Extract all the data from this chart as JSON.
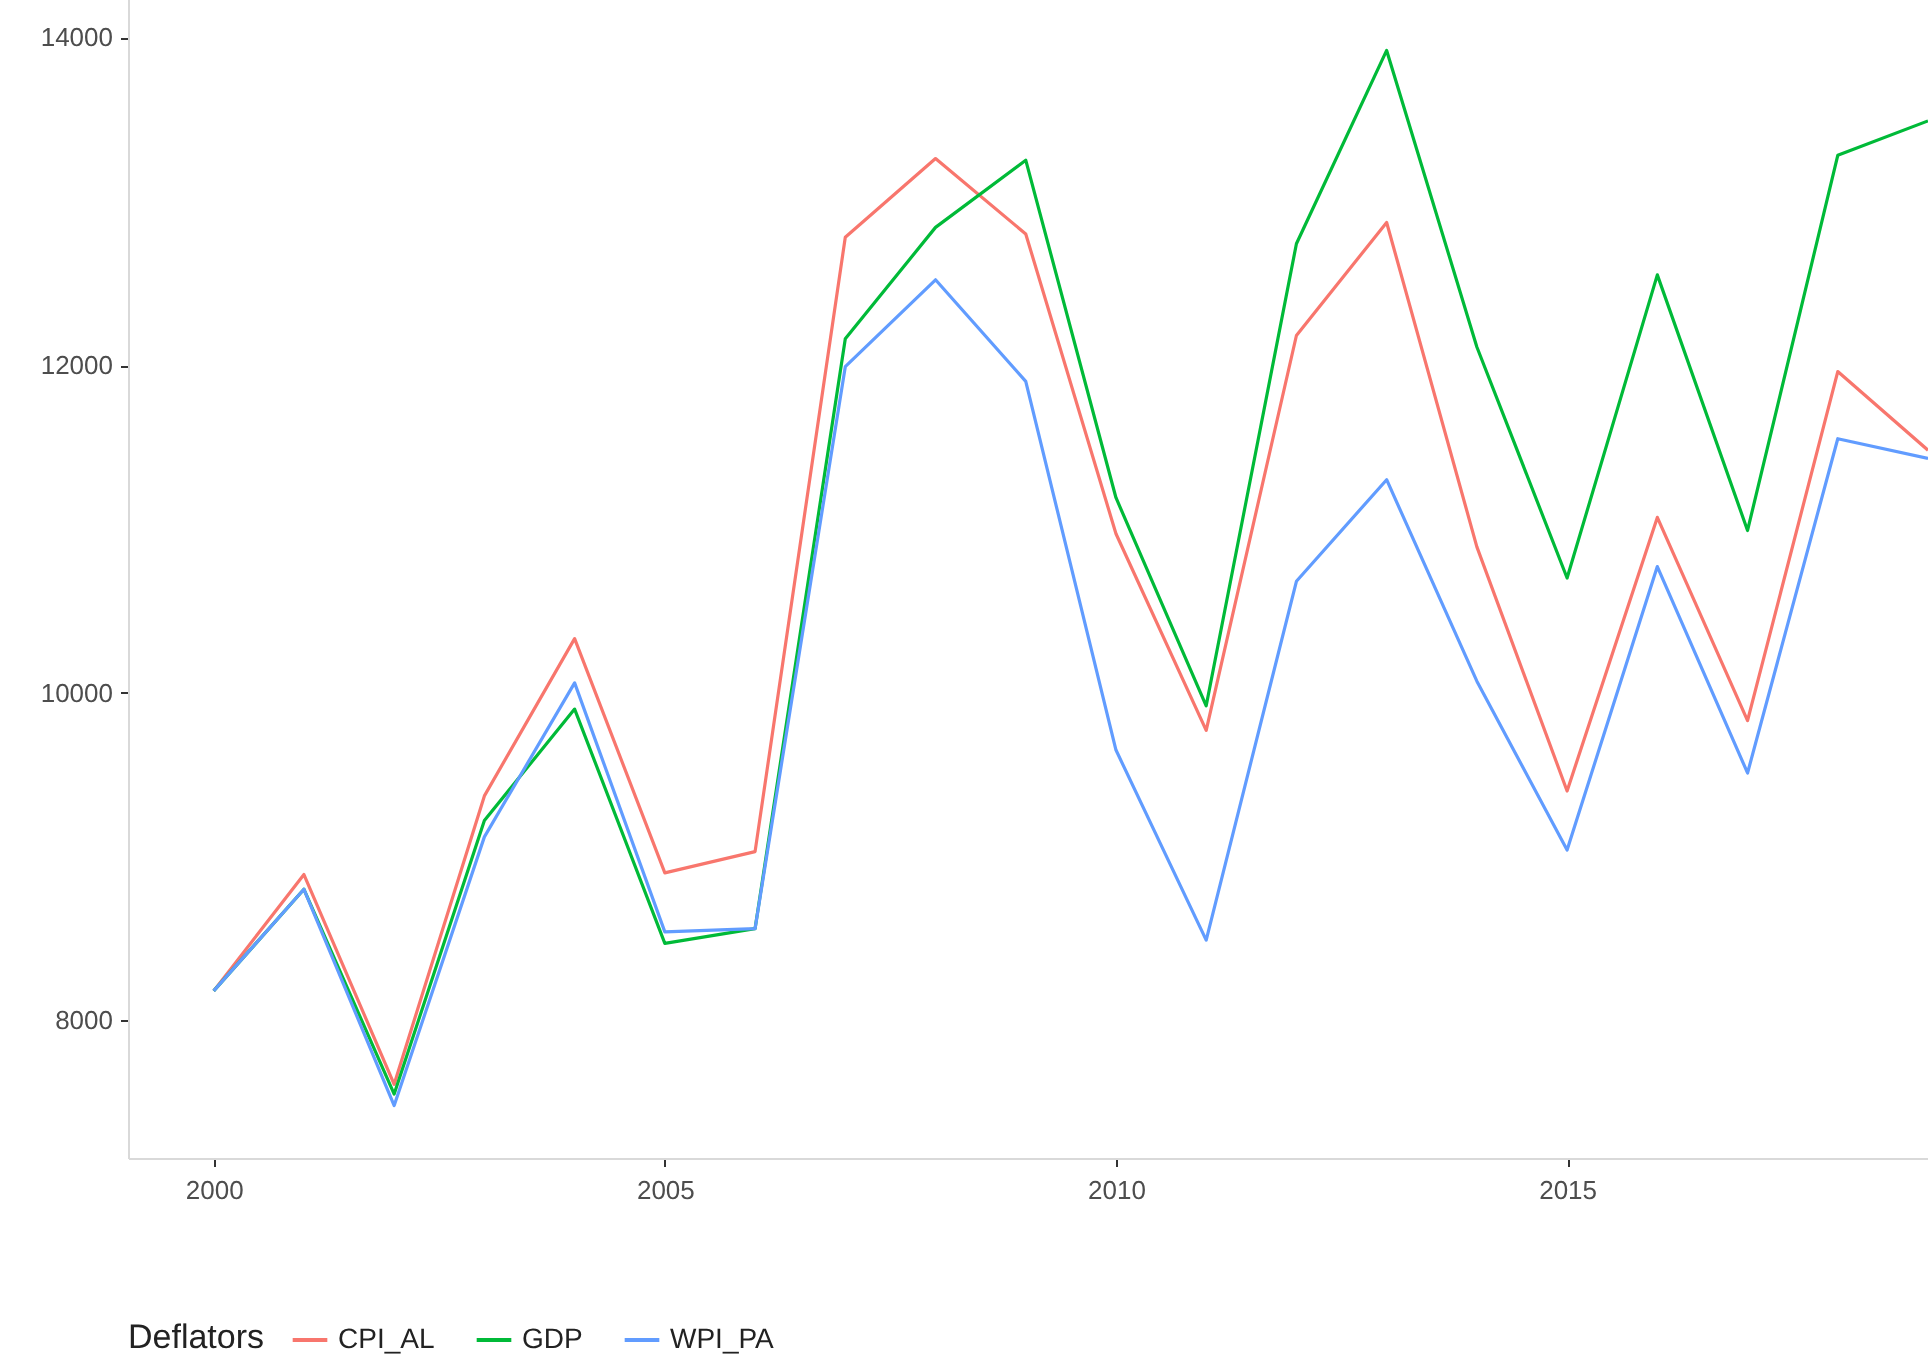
{
  "chart_data": {
    "type": "line",
    "legend_title": "Deflators",
    "legend": "bottom",
    "x": [
      2000,
      2001,
      2002,
      2003,
      2004,
      2005,
      2006,
      2007,
      2008,
      2009,
      2010,
      2011,
      2012,
      2013,
      2014,
      2015,
      2016,
      2017,
      2018,
      2019
    ],
    "xlim": [
      1999.05,
      2019
    ],
    "xticks": [
      2000,
      2005,
      2010,
      2015
    ],
    "ylim": [
      7160,
      14240
    ],
    "yticks": [
      8000,
      10000,
      12000,
      14000
    ],
    "series": [
      {
        "name": "CPI_AL",
        "color": "#f8766d",
        "values": [
          8180,
          8890,
          7610,
          9370,
          10330,
          8900,
          9030,
          12780,
          13260,
          12800,
          10970,
          9770,
          12180,
          12870,
          10890,
          9400,
          11070,
          9830,
          11960,
          11480
        ]
      },
      {
        "name": "GDP",
        "color": "#00ba38",
        "values": [
          8180,
          8800,
          7550,
          9220,
          9900,
          8470,
          8560,
          12160,
          12840,
          13250,
          11190,
          9920,
          12740,
          13920,
          12110,
          10700,
          12550,
          10990,
          13280,
          13490
        ]
      },
      {
        "name": "WPI_PA",
        "color": "#619cff",
        "values": [
          8180,
          8800,
          7480,
          9120,
          10060,
          8540,
          8560,
          11990,
          12520,
          11900,
          9650,
          8490,
          10680,
          11300,
          10070,
          9040,
          10770,
          9510,
          11550,
          11430
        ]
      }
    ]
  }
}
